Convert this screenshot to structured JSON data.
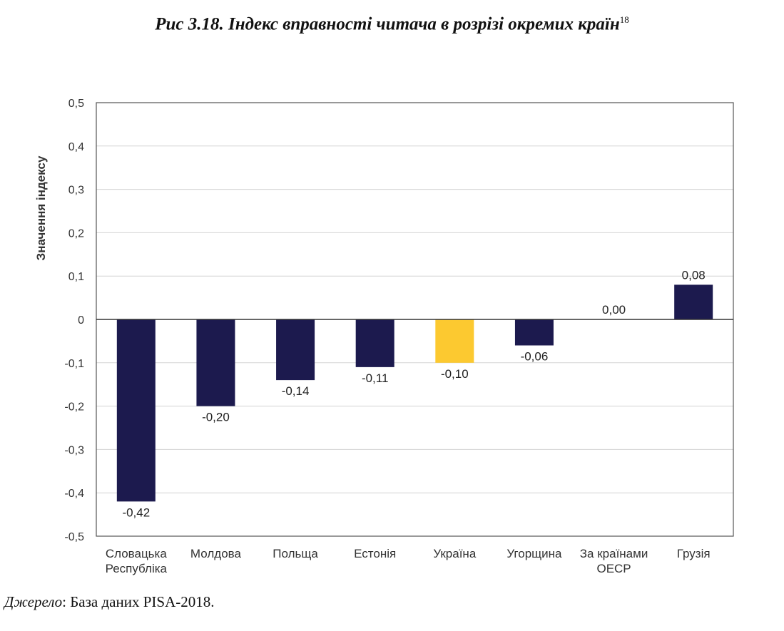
{
  "figure": {
    "title": "Рис 3.18. Індекс вправності читача в розрізі окремих країн",
    "footnote": "18",
    "source_label": "Джерело",
    "source_text": ": База даних PISA-2018."
  },
  "chart_data": {
    "type": "bar",
    "ylabel": "Значення індексу",
    "ylim": [
      -0.5,
      0.5
    ],
    "yticks": [
      "0,5",
      "0,4",
      "0,3",
      "0,2",
      "0,1",
      "0",
      "-0,1",
      "-0,2",
      "-0,3",
      "-0,4",
      "-0,5"
    ],
    "ytick_values": [
      0.5,
      0.4,
      0.3,
      0.2,
      0.1,
      0,
      -0.1,
      -0.2,
      -0.3,
      -0.4,
      -0.5
    ],
    "grid": true,
    "categories": [
      [
        "Словацька",
        "Республіка"
      ],
      [
        "Молдова"
      ],
      [
        "Польща"
      ],
      [
        "Естонія"
      ],
      [
        "Україна"
      ],
      [
        "Угорщина"
      ],
      [
        "За країнами",
        "ОЕСР"
      ],
      [
        "Грузія"
      ]
    ],
    "values": [
      -0.42,
      -0.2,
      -0.14,
      -0.11,
      -0.1,
      -0.06,
      0.0,
      0.08
    ],
    "value_labels": [
      "-0,42",
      "-0,20",
      "-0,14",
      "-0,11",
      "-0,10",
      "-0,06",
      "0,00",
      "0,08"
    ],
    "colors": [
      "#1c1a4e",
      "#1c1a4e",
      "#1c1a4e",
      "#1c1a4e",
      "#fcc930",
      "#1c1a4e",
      "#1c1a4e",
      "#1c1a4e"
    ]
  }
}
